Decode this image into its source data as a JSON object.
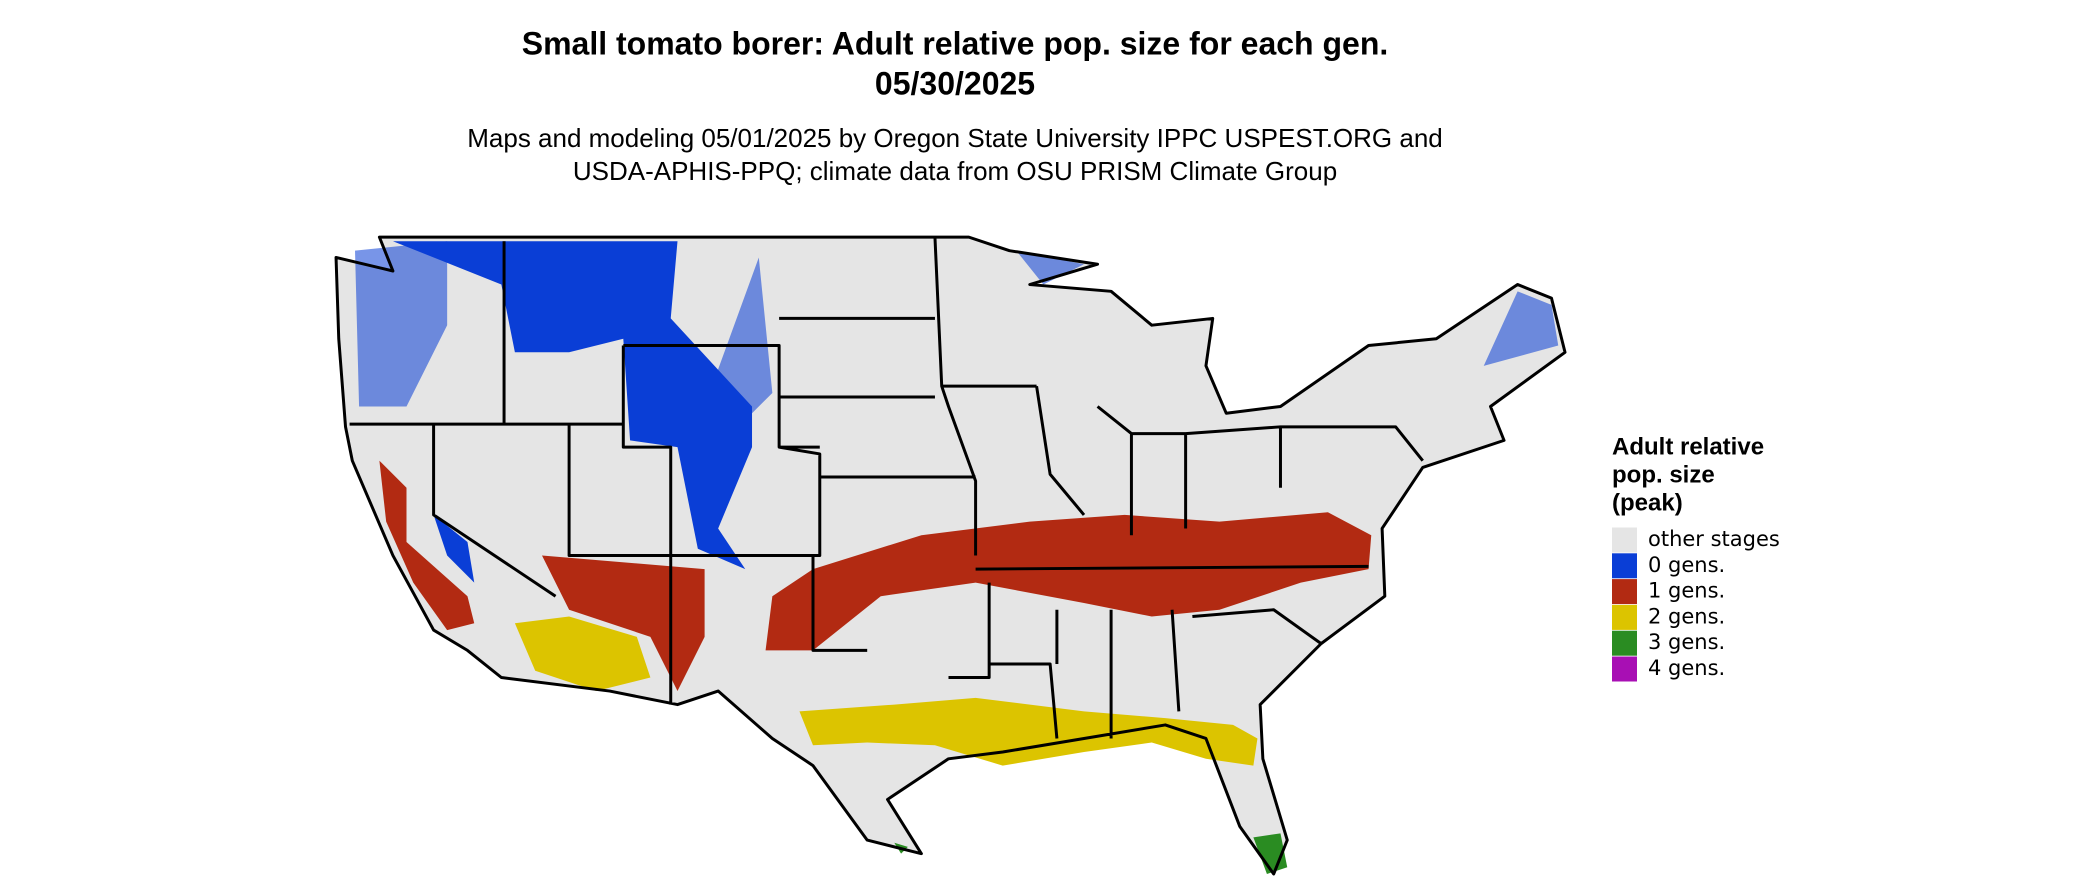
{
  "title": "Small tomato borer: Adult relative pop. size for each gen.",
  "date": "05/30/2025",
  "subtitle": [
    "Maps and modeling 05/01/2025 by Oregon State University IPPC USPEST.ORG and",
    "USDA-APHIS-PPQ; climate data from OSU PRISM Climate Group"
  ],
  "legend": {
    "title": [
      "Adult relative",
      "pop. size",
      "(peak)"
    ],
    "items": [
      {
        "label": "other stages",
        "color": "#e5e5e5"
      },
      {
        "label": "0 gens.",
        "color": "#0a3ed6"
      },
      {
        "label": "1 gens.",
        "color": "#b22a12"
      },
      {
        "label": "2 gens.",
        "color": "#dcc400"
      },
      {
        "label": "3 gens.",
        "color": "#2a8c22"
      },
      {
        "label": "4 gens.",
        "color": "#a80fb4"
      }
    ]
  }
}
